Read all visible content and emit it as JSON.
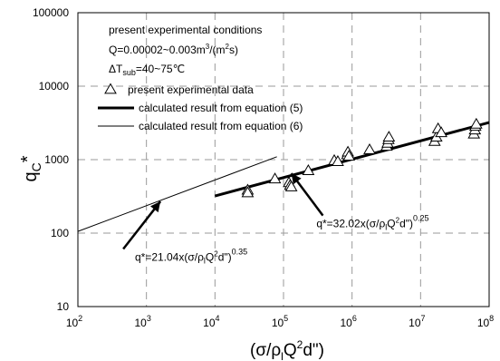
{
  "chart_data": {
    "type": "scatter",
    "x_scale": "log",
    "y_scale": "log",
    "xlim": [
      100,
      100000000
    ],
    "ylim": [
      10,
      100000
    ],
    "grid": true,
    "ylabel_base": "q",
    "ylabel_sub": "C",
    "ylabel_sup": "*",
    "xlabel_parts": [
      "(σ/ρ",
      "l",
      "Q",
      "2",
      "d\")"
    ],
    "y_ticks": [
      {
        "value": 10,
        "label": "10"
      },
      {
        "value": 100,
        "label": "100"
      },
      {
        "value": 1000,
        "label": "1000"
      },
      {
        "value": 10000,
        "label": "10000"
      },
      {
        "value": 100000,
        "label": "100000"
      }
    ],
    "x_ticks": [
      {
        "value": 100,
        "base": "10",
        "exp": "2"
      },
      {
        "value": 1000,
        "base": "10",
        "exp": "3"
      },
      {
        "value": 10000,
        "base": "10",
        "exp": "4"
      },
      {
        "value": 100000,
        "base": "10",
        "exp": "5"
      },
      {
        "value": 1000000,
        "base": "10",
        "exp": "6"
      },
      {
        "value": 10000000,
        "base": "10",
        "exp": "7"
      },
      {
        "value": 100000000,
        "base": "10",
        "exp": "8"
      }
    ],
    "conditions": {
      "title": "present experimental conditions",
      "q_range": "Q=0.00002~0.003m",
      "q_sup": "3",
      "q_unit_tail": "/(m",
      "q_unit_sup": "2",
      "q_unit_end": "s)",
      "dt_prefix": "ΔT",
      "dt_sub": "sub",
      "dt_value": "=40~75℃"
    },
    "legend": [
      {
        "marker": "triangle",
        "label": "present experimental data"
      },
      {
        "marker": "thick-line",
        "label": "calculated result from equation (5)"
      },
      {
        "marker": "thin-line",
        "label": "calculated result from equation (6)"
      }
    ],
    "series": [
      {
        "name": "present experimental data",
        "kind": "scatter",
        "marker": "triangle",
        "points": [
          {
            "x": 30000,
            "y": 380
          },
          {
            "x": 30000,
            "y": 350
          },
          {
            "x": 75000,
            "y": 540
          },
          {
            "x": 120000,
            "y": 480
          },
          {
            "x": 125000,
            "y": 440
          },
          {
            "x": 130000,
            "y": 420
          },
          {
            "x": 230000,
            "y": 700
          },
          {
            "x": 550000,
            "y": 960
          },
          {
            "x": 620000,
            "y": 930
          },
          {
            "x": 850000,
            "y": 1150
          },
          {
            "x": 870000,
            "y": 1250
          },
          {
            "x": 900000,
            "y": 1100
          },
          {
            "x": 1800000,
            "y": 1350
          },
          {
            "x": 3200000,
            "y": 1500
          },
          {
            "x": 3300000,
            "y": 1650
          },
          {
            "x": 3400000,
            "y": 1850
          },
          {
            "x": 3450000,
            "y": 2000
          },
          {
            "x": 16000000,
            "y": 1750
          },
          {
            "x": 17000000,
            "y": 2000
          },
          {
            "x": 18000000,
            "y": 2600
          },
          {
            "x": 20000000,
            "y": 2300
          },
          {
            "x": 60000000,
            "y": 2200
          },
          {
            "x": 62000000,
            "y": 2500
          },
          {
            "x": 63000000,
            "y": 2800
          },
          {
            "x": 65000000,
            "y": 3000
          }
        ]
      },
      {
        "name": "calculated result from equation (5)",
        "kind": "line",
        "weight": "thick",
        "coefficient": 32.02,
        "exponent": 0.25,
        "x_range": [
          10000,
          100000000
        ]
      },
      {
        "name": "calculated result from equation (6)",
        "kind": "line",
        "weight": "thin",
        "coefficient": 21.04,
        "exponent": 0.35,
        "x_range": [
          100,
          80000
        ]
      }
    ],
    "annotations": [
      {
        "id": "eq5",
        "prefix": "q*=32.02x(σ/ρ",
        "sub": "l",
        "mid": "Q",
        "sup2": "2",
        "tail": "d\")",
        "power": "0.25",
        "arrow_target": {
          "x": 130000,
          "y": 650
        },
        "text_anchor_data": {
          "x": 2000000,
          "y": 120
        }
      },
      {
        "id": "eq6",
        "prefix": "q*=21.04x(σ/ρ",
        "sub": "l",
        "mid": "Q",
        "sup2": "2",
        "tail": "d\")",
        "power": "0.35",
        "arrow_target": {
          "x": 1600,
          "y": 270
        },
        "text_anchor_data": {
          "x": 4500,
          "y": 42
        }
      }
    ]
  }
}
